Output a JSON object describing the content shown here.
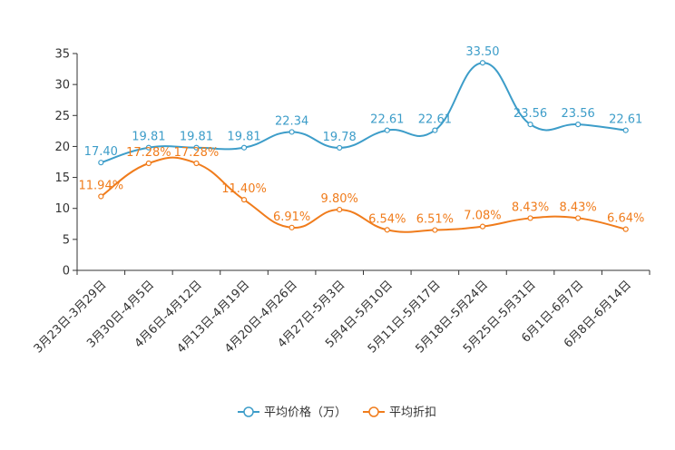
{
  "chart_data": {
    "type": "line",
    "title": "",
    "xlabel": "",
    "ylabel": "",
    "ylim": [
      0,
      35
    ],
    "yticks": [
      0,
      5,
      10,
      15,
      20,
      25,
      30,
      35
    ],
    "categories": [
      "3月23日-3月29日",
      "3月30日-4月5日",
      "4月6日-4月12日",
      "4月13日-4月19日",
      "4月20日-4月26日",
      "4月27日-5月3日",
      "5月4日-5月10日",
      "5月11日-5月17日",
      "5月18日-5月24日",
      "5月25日-5月31日",
      "6月1日-6月7日",
      "6月8日-6月14日"
    ],
    "series": [
      {
        "name": "平均价格（万）",
        "color": "#3d9dc9",
        "values": [
          17.4,
          19.81,
          19.81,
          19.81,
          22.34,
          19.78,
          22.61,
          22.61,
          33.5,
          23.56,
          23.56,
          22.61
        ],
        "labels": [
          "17.40",
          "19.81",
          "19.81",
          "19.81",
          "22.34",
          "19.78",
          "22.61",
          "22.61",
          "33.50",
          "23.56",
          "23.56",
          "22.61"
        ]
      },
      {
        "name": "平均折扣",
        "color": "#f07c1c",
        "values": [
          11.94,
          17.28,
          17.28,
          11.4,
          6.91,
          9.8,
          6.54,
          6.51,
          7.08,
          8.43,
          8.43,
          6.64
        ],
        "labels": [
          "11.94%",
          "17.28%",
          "17.28%",
          "11.40%",
          "6.91%",
          "9.80%",
          "6.54%",
          "6.51%",
          "7.08%",
          "8.43%",
          "8.43%",
          "6.64%"
        ]
      }
    ],
    "legend_position": "bottom-center"
  }
}
